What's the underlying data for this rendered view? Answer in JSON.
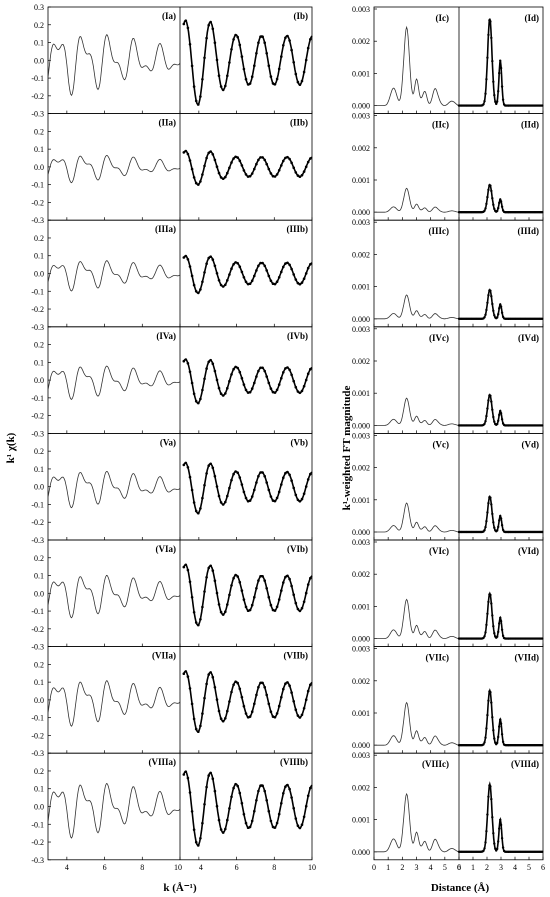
{
  "chart_data": {
    "type": "line",
    "left": {
      "ylabel": "k¹ χ(k)",
      "xlabel": "k (Å⁻¹)",
      "ylim": [
        -0.3,
        0.3
      ],
      "yticks": [
        "0.3",
        "0.2",
        "0.1",
        "0.0",
        "-0.1",
        "-0.2",
        "-0.3"
      ],
      "xlim_a": [
        3,
        10
      ],
      "xlim_b": [
        3,
        10
      ],
      "xticks_a": [
        "4",
        "6",
        "8",
        "10"
      ],
      "xticks_b": [
        "4",
        "6",
        "8",
        "10"
      ],
      "panels": [
        {
          "label_a": "(Ia)",
          "label_b": "(Ib)",
          "amp_a": 0.2,
          "amp_b": 0.25
        },
        {
          "label_a": "(IIa)",
          "label_b": "(IIb)",
          "amp_a": 0.09,
          "amp_b": 0.1
        },
        {
          "label_a": "(IIIa)",
          "label_b": "(IIIb)",
          "amp_a": 0.1,
          "amp_b": 0.11
        },
        {
          "label_a": "(IVa)",
          "label_b": "(IVb)",
          "amp_a": 0.11,
          "amp_b": 0.13
        },
        {
          "label_a": "(Va)",
          "label_b": "(Vb)",
          "amp_a": 0.12,
          "amp_b": 0.15
        },
        {
          "label_a": "(VIa)",
          "label_b": "(VIb)",
          "amp_a": 0.14,
          "amp_b": 0.18
        },
        {
          "label_a": "(VIIa)",
          "label_b": "(VIIb)",
          "amp_a": 0.15,
          "amp_b": 0.18
        },
        {
          "label_a": "(VIIIa)",
          "label_b": "(VIIIb)",
          "amp_a": 0.18,
          "amp_b": 0.22
        }
      ]
    },
    "right": {
      "ylabel": "k¹-weighted FT magnitude",
      "xlabel": "Distance (Å)",
      "ylim": [
        0,
        0.003
      ],
      "yticks": [
        "0.003",
        "0.002",
        "0.001",
        "0.000"
      ],
      "xlim_c": [
        0,
        6
      ],
      "xlim_d": [
        0,
        6
      ],
      "xticks_c": [
        "0",
        "1",
        "2",
        "3",
        "4",
        "5",
        "6"
      ],
      "xticks_d": [
        "0",
        "1",
        "2",
        "3",
        "4",
        "5",
        "6"
      ],
      "panels": [
        {
          "label_c": "(Ic)",
          "label_d": "(Id)",
          "peak_c": 0.0023,
          "peak_d": 0.0027,
          "second_d": 0.0014
        },
        {
          "label_c": "(IIc)",
          "label_d": "(IId)",
          "peak_c": 0.0007,
          "peak_d": 0.00085,
          "second_d": 0.0004
        },
        {
          "label_c": "(IIIc)",
          "label_d": "(IIId)",
          "peak_c": 0.0007,
          "peak_d": 0.0009,
          "second_d": 0.00045
        },
        {
          "label_c": "(IVc)",
          "label_d": "(IVd)",
          "peak_c": 0.0008,
          "peak_d": 0.00095,
          "second_d": 0.00045
        },
        {
          "label_c": "(Vc)",
          "label_d": "(Vd)",
          "peak_c": 0.00085,
          "peak_d": 0.0011,
          "second_d": 0.0005
        },
        {
          "label_c": "(VIc)",
          "label_d": "(VId)",
          "peak_c": 0.00115,
          "peak_d": 0.0014,
          "second_d": 0.00065
        },
        {
          "label_c": "(VIIc)",
          "label_d": "(VIId)",
          "peak_c": 0.00125,
          "peak_d": 0.0017,
          "second_d": 0.0008
        },
        {
          "label_c": "(VIIIc)",
          "label_d": "(VIIId)",
          "peak_c": 0.0017,
          "peak_d": 0.0021,
          "second_d": 0.001
        }
      ]
    }
  }
}
